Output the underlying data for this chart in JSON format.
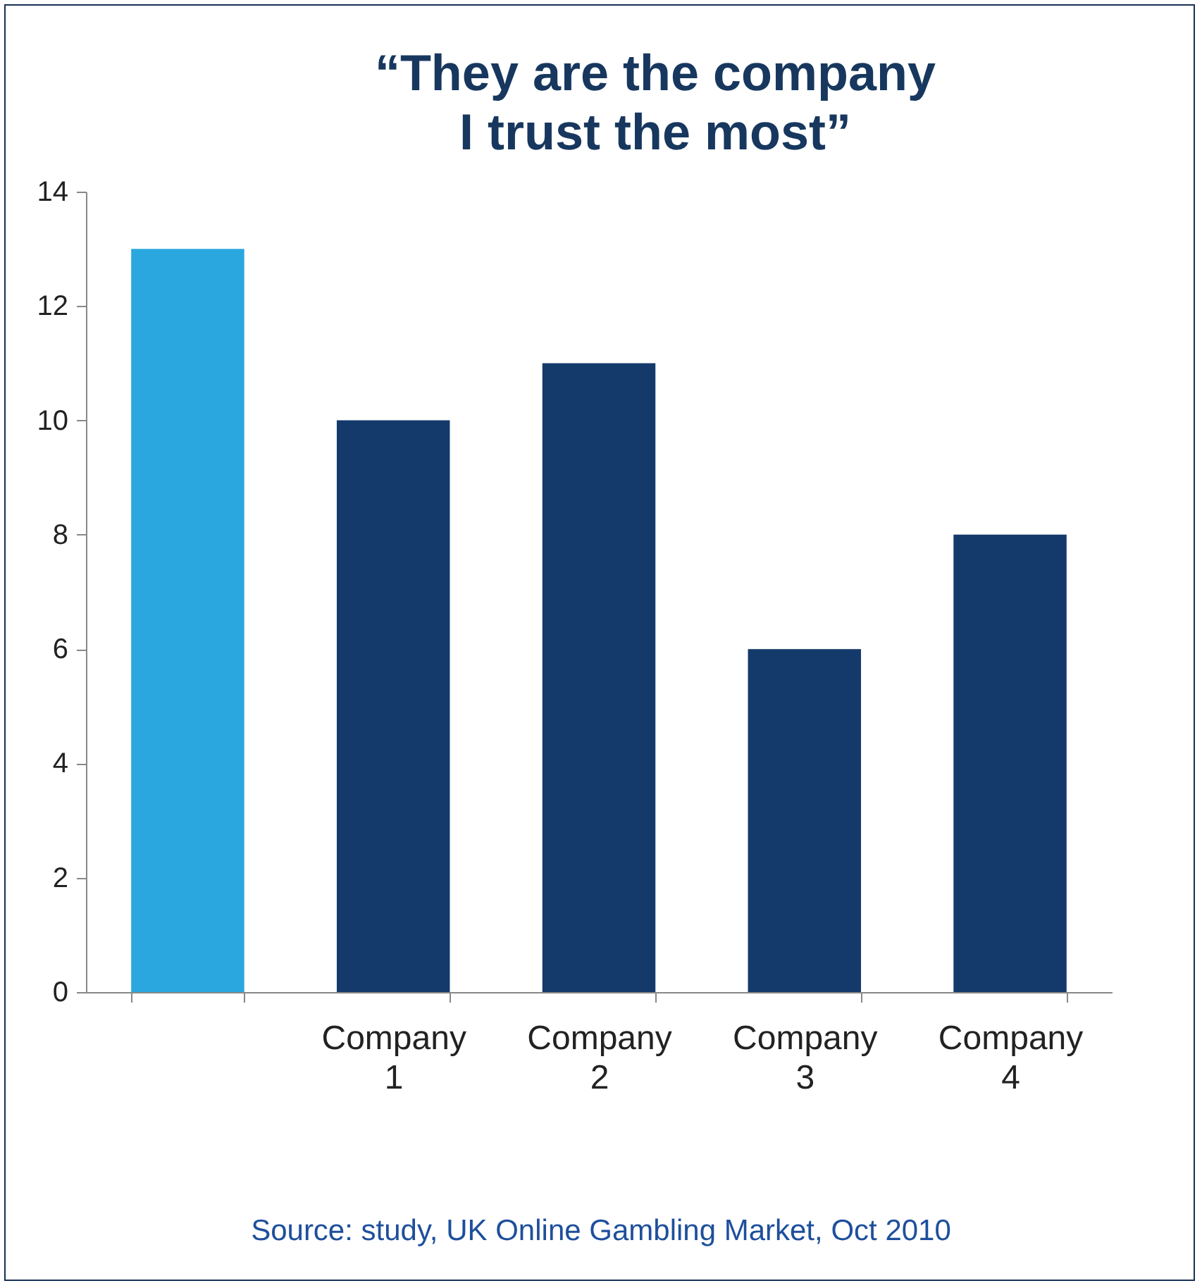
{
  "chart_data": {
    "type": "bar",
    "title": "“They are the company\nI trust the most”",
    "categories": [
      null,
      "Company 1",
      "Company 2",
      "Company 3",
      "Company 4"
    ],
    "values": [
      13,
      10,
      11,
      6,
      8
    ],
    "colors": [
      "#2aa7df",
      "#143a6b",
      "#143a6b",
      "#143a6b",
      "#143a6b"
    ],
    "ylim": [
      0,
      14
    ],
    "yticks": [
      0,
      2,
      4,
      6,
      8,
      10,
      12,
      14
    ],
    "grid": false,
    "annotations": [
      "Source: study, UK Online Gambling Market, Oct 2010"
    ]
  }
}
